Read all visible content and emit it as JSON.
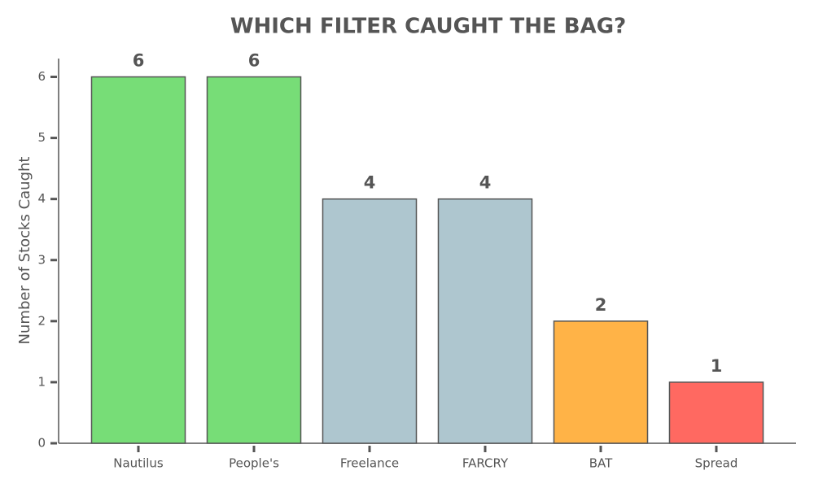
{
  "chart_data": {
    "type": "bar",
    "title": "WHICH FILTER CAUGHT THE BAG?",
    "y_label": "Number of Stocks Caught",
    "categories": [
      "Nautilus",
      "People's",
      "Freelance",
      "FARCRY",
      "BAT",
      "Spread"
    ],
    "values": [
      6,
      6,
      4,
      4,
      2,
      1
    ],
    "colors": [
      "#77dd77",
      "#77dd77",
      "#aec6cf",
      "#aec6cf",
      "#ffb347",
      "#ff6961"
    ],
    "ylim": [
      0,
      6.3
    ],
    "yticks": [
      0,
      1,
      2,
      3,
      4,
      5,
      6
    ],
    "grid": false
  }
}
